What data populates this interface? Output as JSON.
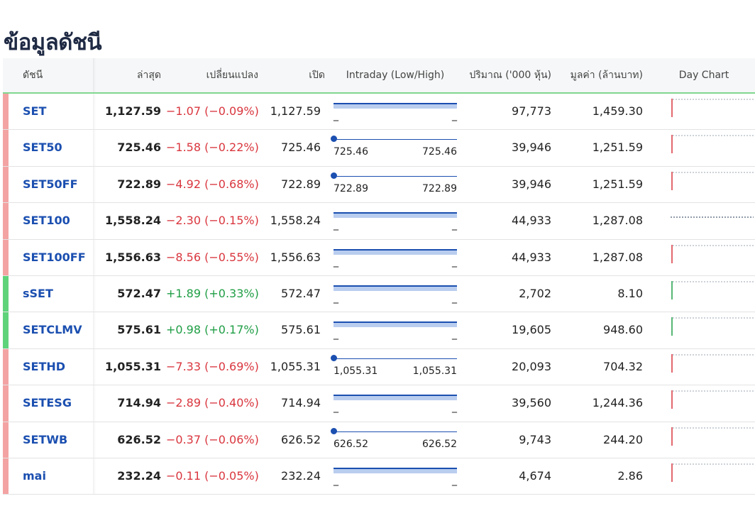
{
  "page_title": "ข้อมูลดัชนี",
  "headers": {
    "index": "ดัชนี",
    "last": "ล่าสุด",
    "change": "เปลี่ยนแปลง",
    "open": "เปิด",
    "intraday": "Intraday (Low/High)",
    "volume": "ปริมาณ ('000 หุ้น)",
    "value": "มูลค่า (ล้านบาท)",
    "day_chart": "Day Chart"
  },
  "colors": {
    "up": "#1f9e45",
    "down": "#d9363e",
    "up_bar": "#5fd37a",
    "down_bar": "#f4a3a3",
    "accent": "#1b4fb0"
  },
  "rows": [
    {
      "name": "SET",
      "last": "1,127.59",
      "change": "−1.07 (−0.09%)",
      "direction": "down",
      "open": "1,127.59",
      "low": "_",
      "high": "_",
      "intraday_type": "range",
      "volume": "97,773",
      "value": "1,459.30",
      "day_chart": "down"
    },
    {
      "name": "SET50",
      "last": "725.46",
      "change": "−1.58 (−0.22%)",
      "direction": "down",
      "open": "725.46",
      "low": "725.46",
      "high": "725.46",
      "intraday_type": "point",
      "volume": "39,946",
      "value": "1,251.59",
      "day_chart": "down"
    },
    {
      "name": "SET50FF",
      "last": "722.89",
      "change": "−4.92 (−0.68%)",
      "direction": "down",
      "open": "722.89",
      "low": "722.89",
      "high": "722.89",
      "intraday_type": "point",
      "volume": "39,946",
      "value": "1,251.59",
      "day_chart": "down"
    },
    {
      "name": "SET100",
      "last": "1,558.24",
      "change": "−2.30 (−0.15%)",
      "direction": "down",
      "open": "1,558.24",
      "low": "_",
      "high": "_",
      "intraday_type": "range",
      "volume": "44,933",
      "value": "1,287.08",
      "day_chart": "flat"
    },
    {
      "name": "SET100FF",
      "last": "1,556.63",
      "change": "−8.56 (−0.55%)",
      "direction": "down",
      "open": "1,556.63",
      "low": "_",
      "high": "_",
      "intraday_type": "range",
      "volume": "44,933",
      "value": "1,287.08",
      "day_chart": "down"
    },
    {
      "name": "sSET",
      "last": "572.47",
      "change": "+1.89 (+0.33%)",
      "direction": "up",
      "open": "572.47",
      "low": "_",
      "high": "_",
      "intraday_type": "range",
      "volume": "2,702",
      "value": "8.10",
      "day_chart": "up"
    },
    {
      "name": "SETCLMV",
      "last": "575.61",
      "change": "+0.98 (+0.17%)",
      "direction": "up",
      "open": "575.61",
      "low": "_",
      "high": "_",
      "intraday_type": "range",
      "volume": "19,605",
      "value": "948.60",
      "day_chart": "up"
    },
    {
      "name": "SETHD",
      "last": "1,055.31",
      "change": "−7.33 (−0.69%)",
      "direction": "down",
      "open": "1,055.31",
      "low": "1,055.31",
      "high": "1,055.31",
      "intraday_type": "point",
      "volume": "20,093",
      "value": "704.32",
      "day_chart": "down"
    },
    {
      "name": "SETESG",
      "last": "714.94",
      "change": "−2.89 (−0.40%)",
      "direction": "down",
      "open": "714.94",
      "low": "_",
      "high": "_",
      "intraday_type": "range",
      "volume": "39,560",
      "value": "1,244.36",
      "day_chart": "down"
    },
    {
      "name": "SETWB",
      "last": "626.52",
      "change": "−0.37 (−0.06%)",
      "direction": "down",
      "open": "626.52",
      "low": "626.52",
      "high": "626.52",
      "intraday_type": "point",
      "volume": "9,743",
      "value": "244.20",
      "day_chart": "down"
    },
    {
      "name": "mai",
      "last": "232.24",
      "change": "−0.11 (−0.05%)",
      "direction": "down",
      "open": "232.24",
      "low": "_",
      "high": "_",
      "intraday_type": "range",
      "volume": "4,674",
      "value": "2.86",
      "day_chart": "down"
    }
  ]
}
